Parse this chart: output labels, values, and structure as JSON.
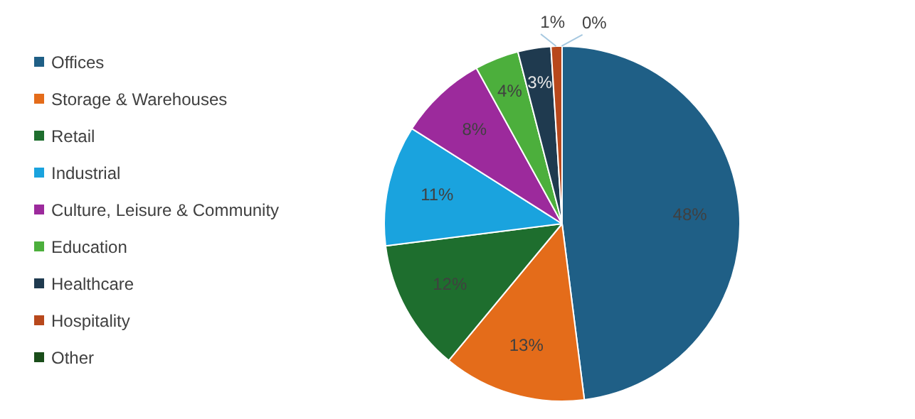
{
  "chart_data": {
    "type": "pie",
    "categories": [
      "Offices",
      "Storage & Warehouses",
      "Retail",
      "Industrial",
      "Culture, Leisure & Community",
      "Education",
      "Healthcare",
      "Hospitality",
      "Other"
    ],
    "values": [
      48,
      13,
      12,
      11,
      8,
      4,
      3,
      1,
      0
    ],
    "value_labels": [
      "48%",
      "13%",
      "12%",
      "11%",
      "8%",
      "4%",
      "3%",
      "1%",
      "0%"
    ],
    "colors": [
      "#1f5f86",
      "#e46c1a",
      "#1e6e2e",
      "#1aa3de",
      "#9c2a9c",
      "#4caf3c",
      "#1f3a4f",
      "#b8481c",
      "#1a4d1a"
    ],
    "legend": "left"
  }
}
